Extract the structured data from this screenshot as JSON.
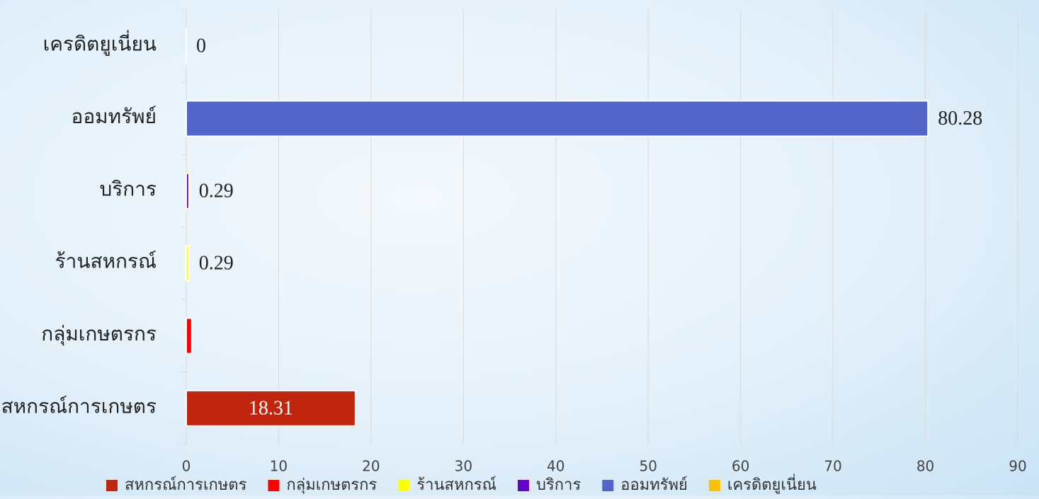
{
  "chart_data": {
    "type": "hbar",
    "categories": [
      "สหกรณ์การเกษตร",
      "กลุ่มเกษตรกร",
      "ร้านสหกรณ์",
      "บริการ",
      "ออมทรัพย์",
      "เครดิตยูเนี่ยน"
    ],
    "values": [
      18.31,
      0.6,
      0.29,
      0.29,
      80.28,
      0
    ],
    "value_labels": [
      "18.31",
      null,
      "0.29",
      "0.29",
      "80.28",
      "0"
    ],
    "colors": [
      "#c0260e",
      "#ff0000",
      "#ffff00",
      "#6600cc",
      "#5166c8",
      "#ffc000"
    ],
    "xlim": [
      0,
      90
    ],
    "xticks": [
      0,
      10,
      20,
      30,
      40,
      50,
      60,
      70,
      80,
      90
    ],
    "grid": true,
    "legend": "bottom"
  }
}
